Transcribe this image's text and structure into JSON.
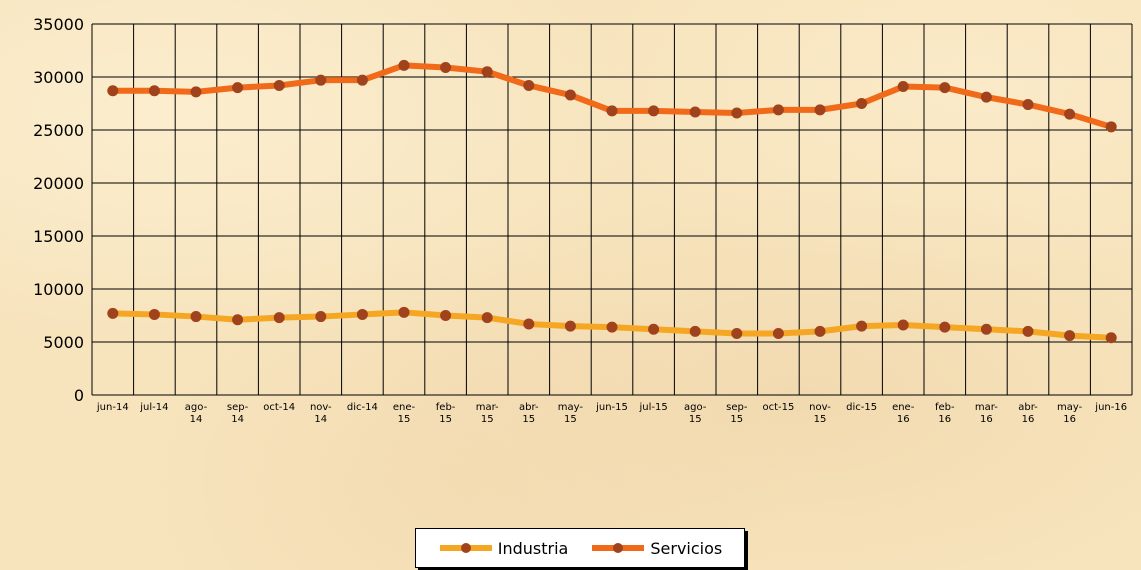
{
  "chart_data": {
    "type": "line",
    "title": "",
    "xlabel": "",
    "ylabel": "",
    "ylim": [
      0,
      35000
    ],
    "yticks": [
      0,
      5000,
      10000,
      15000,
      20000,
      25000,
      30000,
      35000
    ],
    "categories": [
      [
        "jun-14"
      ],
      [
        "jul-14"
      ],
      [
        "ago-",
        "14"
      ],
      [
        "sep-",
        "14"
      ],
      [
        "oct-14"
      ],
      [
        "nov-",
        "14"
      ],
      [
        "dic-14"
      ],
      [
        "ene-",
        "15"
      ],
      [
        "feb-",
        "15"
      ],
      [
        "mar-",
        "15"
      ],
      [
        "abr-",
        "15"
      ],
      [
        "may-",
        "15"
      ],
      [
        "jun-15"
      ],
      [
        "jul-15"
      ],
      [
        "ago-",
        "15"
      ],
      [
        "sep-",
        "15"
      ],
      [
        "oct-15"
      ],
      [
        "nov-",
        "15"
      ],
      [
        "dic-15"
      ],
      [
        "ene-",
        "16"
      ],
      [
        "feb-",
        "16"
      ],
      [
        "mar-",
        "16"
      ],
      [
        "abr-",
        "16"
      ],
      [
        "may-",
        "16"
      ],
      [
        "jun-16"
      ]
    ],
    "series": [
      {
        "name": "Industria",
        "color": "#f5a623",
        "marker_color": "#a0421b",
        "values": [
          7700,
          7600,
          7400,
          7100,
          7300,
          7400,
          7600,
          7800,
          7500,
          7300,
          6700,
          6500,
          6400,
          6200,
          6000,
          5800,
          5800,
          6000,
          6500,
          6600,
          6400,
          6200,
          6000,
          5600,
          5400
        ]
      },
      {
        "name": "Servicios",
        "color": "#f06a1a",
        "marker_color": "#a0421b",
        "values": [
          28700,
          28700,
          28600,
          29000,
          29200,
          29700,
          29700,
          31100,
          30900,
          30500,
          29200,
          28300,
          26800,
          26800,
          26700,
          26600,
          26900,
          26900,
          27500,
          29100,
          29000,
          28100,
          27400,
          26500,
          25300
        ]
      }
    ],
    "grid": true,
    "legend_position": "bottom"
  }
}
